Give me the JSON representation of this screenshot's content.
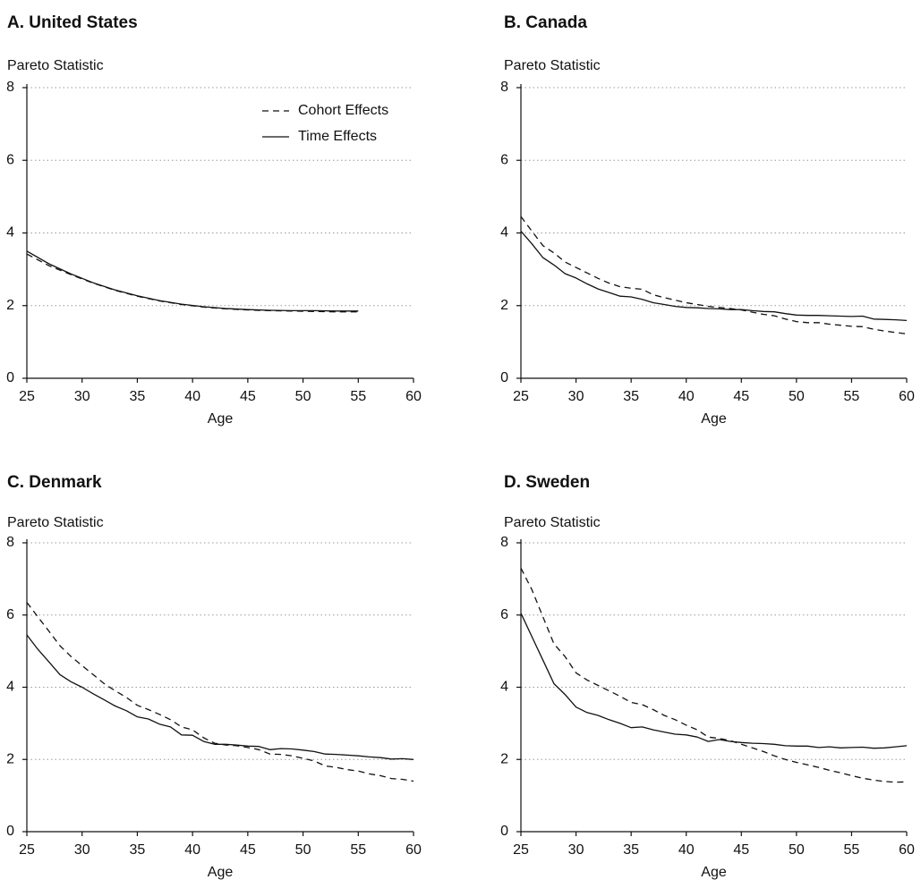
{
  "chart_data": [
    {
      "type": "line",
      "title": "A. United States",
      "ylabel": "Pareto Statistic",
      "xlabel": "Age",
      "xlim": [
        25,
        60
      ],
      "ylim": [
        0,
        8
      ],
      "xticks": [
        25,
        30,
        35,
        40,
        45,
        50,
        55,
        60
      ],
      "yticks": [
        0,
        2,
        4,
        6,
        8
      ],
      "grid": "horizontal dotted",
      "legend": "top-right",
      "series": [
        {
          "name": "Cohort Effects",
          "style": "dashed",
          "x": [
            25,
            27,
            29,
            31,
            33,
            35,
            37,
            39,
            41,
            43,
            45,
            47,
            49,
            51,
            53,
            55
          ],
          "y": [
            3.42,
            3.1,
            2.85,
            2.62,
            2.42,
            2.26,
            2.13,
            2.03,
            1.96,
            1.91,
            1.88,
            1.86,
            1.85,
            1.84,
            1.83,
            1.83
          ]
        },
        {
          "name": "Time Effects",
          "style": "solid",
          "x": [
            25,
            27,
            29,
            31,
            33,
            35,
            37,
            39,
            41,
            43,
            45,
            47,
            49,
            51,
            53,
            55
          ],
          "y": [
            3.5,
            3.15,
            2.87,
            2.63,
            2.43,
            2.27,
            2.14,
            2.04,
            1.97,
            1.92,
            1.89,
            1.87,
            1.86,
            1.86,
            1.85,
            1.85
          ]
        }
      ]
    },
    {
      "type": "line",
      "title": "B. Canada",
      "ylabel": "Pareto Statistic",
      "xlabel": "Age",
      "xlim": [
        25,
        60
      ],
      "ylim": [
        0,
        8
      ],
      "xticks": [
        25,
        30,
        35,
        40,
        45,
        50,
        55,
        60
      ],
      "yticks": [
        0,
        2,
        4,
        6,
        8
      ],
      "grid": "horizontal dotted",
      "series": [
        {
          "name": "Cohort Effects",
          "style": "dashed",
          "x": [
            25,
            26,
            27,
            28,
            29,
            30,
            31,
            32,
            33,
            34,
            35,
            36,
            37,
            38,
            39,
            40,
            41,
            42,
            43,
            44,
            45,
            46,
            47,
            48,
            49,
            50,
            51,
            52,
            53,
            54,
            55,
            56,
            57,
            58,
            59,
            60
          ],
          "y": [
            4.45,
            4.05,
            3.65,
            3.45,
            3.2,
            3.05,
            2.9,
            2.75,
            2.62,
            2.52,
            2.48,
            2.45,
            2.3,
            2.22,
            2.15,
            2.08,
            2.03,
            1.98,
            1.95,
            1.92,
            1.88,
            1.82,
            1.76,
            1.72,
            1.63,
            1.56,
            1.53,
            1.53,
            1.49,
            1.46,
            1.43,
            1.42,
            1.35,
            1.3,
            1.26,
            1.22
          ]
        },
        {
          "name": "Time Effects",
          "style": "solid",
          "x": [
            25,
            26,
            27,
            28,
            29,
            30,
            31,
            32,
            33,
            34,
            35,
            36,
            37,
            38,
            39,
            40,
            41,
            42,
            43,
            44,
            45,
            46,
            47,
            48,
            49,
            50,
            51,
            52,
            53,
            54,
            55,
            56,
            57,
            58,
            59,
            60
          ],
          "y": [
            4.05,
            3.7,
            3.32,
            3.12,
            2.88,
            2.76,
            2.6,
            2.46,
            2.36,
            2.26,
            2.24,
            2.17,
            2.08,
            2.03,
            1.98,
            1.95,
            1.94,
            1.92,
            1.91,
            1.89,
            1.89,
            1.86,
            1.84,
            1.83,
            1.78,
            1.74,
            1.73,
            1.73,
            1.72,
            1.71,
            1.7,
            1.71,
            1.63,
            1.62,
            1.61,
            1.59
          ]
        }
      ]
    },
    {
      "type": "line",
      "title": "C. Denmark",
      "ylabel": "Pareto Statistic",
      "xlabel": "Age",
      "xlim": [
        25,
        60
      ],
      "ylim": [
        0,
        8
      ],
      "xticks": [
        25,
        30,
        35,
        40,
        45,
        50,
        55,
        60
      ],
      "yticks": [
        0,
        2,
        4,
        6,
        8
      ],
      "grid": "horizontal dotted",
      "series": [
        {
          "name": "Cohort Effects",
          "style": "dashed",
          "x": [
            25,
            26,
            27,
            28,
            29,
            30,
            31,
            32,
            33,
            34,
            35,
            36,
            37,
            38,
            39,
            40,
            41,
            42,
            43,
            44,
            45,
            46,
            47,
            48,
            49,
            50,
            51,
            52,
            53,
            54,
            55,
            56,
            57,
            58,
            59,
            60
          ],
          "y": [
            6.35,
            5.95,
            5.55,
            5.15,
            4.85,
            4.6,
            4.35,
            4.1,
            3.9,
            3.72,
            3.5,
            3.38,
            3.25,
            3.1,
            2.9,
            2.82,
            2.6,
            2.45,
            2.4,
            2.38,
            2.33,
            2.27,
            2.15,
            2.14,
            2.1,
            2.03,
            1.96,
            1.82,
            1.78,
            1.72,
            1.68,
            1.6,
            1.55,
            1.47,
            1.45,
            1.4
          ]
        },
        {
          "name": "Time Effects",
          "style": "solid",
          "x": [
            25,
            26,
            27,
            28,
            29,
            30,
            31,
            32,
            33,
            34,
            35,
            36,
            37,
            38,
            39,
            40,
            41,
            42,
            43,
            44,
            45,
            46,
            47,
            48,
            49,
            50,
            51,
            52,
            53,
            54,
            55,
            56,
            57,
            58,
            59,
            60
          ],
          "y": [
            5.45,
            5.05,
            4.7,
            4.35,
            4.15,
            4.0,
            3.82,
            3.65,
            3.48,
            3.35,
            3.18,
            3.12,
            2.98,
            2.9,
            2.68,
            2.67,
            2.5,
            2.42,
            2.42,
            2.4,
            2.37,
            2.36,
            2.27,
            2.3,
            2.29,
            2.26,
            2.22,
            2.15,
            2.14,
            2.12,
            2.1,
            2.07,
            2.05,
            2.01,
            2.02,
            2.0
          ]
        }
      ]
    },
    {
      "type": "line",
      "title": "D. Sweden",
      "ylabel": "Pareto Statistic",
      "xlabel": "Age",
      "xlim": [
        25,
        60
      ],
      "ylim": [
        0,
        8
      ],
      "xticks": [
        25,
        30,
        35,
        40,
        45,
        50,
        55,
        60
      ],
      "yticks": [
        0,
        2,
        4,
        6,
        8
      ],
      "grid": "horizontal dotted",
      "series": [
        {
          "name": "Cohort Effects",
          "style": "dashed",
          "x": [
            25,
            26,
            27,
            28,
            29,
            30,
            31,
            32,
            33,
            34,
            35,
            36,
            37,
            38,
            39,
            40,
            41,
            42,
            43,
            44,
            45,
            46,
            47,
            48,
            49,
            50,
            51,
            52,
            53,
            54,
            55,
            56,
            57,
            58,
            59,
            60
          ],
          "y": [
            7.3,
            6.7,
            5.95,
            5.2,
            4.85,
            4.4,
            4.2,
            4.05,
            3.9,
            3.75,
            3.58,
            3.52,
            3.38,
            3.22,
            3.1,
            2.95,
            2.82,
            2.62,
            2.58,
            2.52,
            2.42,
            2.32,
            2.22,
            2.1,
            2.0,
            1.92,
            1.85,
            1.78,
            1.7,
            1.63,
            1.55,
            1.48,
            1.43,
            1.39,
            1.37,
            1.38
          ]
        },
        {
          "name": "Time Effects",
          "style": "solid",
          "x": [
            25,
            26,
            27,
            28,
            29,
            30,
            31,
            32,
            33,
            34,
            35,
            36,
            37,
            38,
            39,
            40,
            41,
            42,
            43,
            44,
            45,
            46,
            47,
            48,
            49,
            50,
            51,
            52,
            53,
            54,
            55,
            56,
            57,
            58,
            59,
            60
          ],
          "y": [
            6.05,
            5.4,
            4.75,
            4.1,
            3.8,
            3.45,
            3.3,
            3.22,
            3.1,
            3.0,
            2.88,
            2.9,
            2.82,
            2.76,
            2.7,
            2.68,
            2.62,
            2.5,
            2.55,
            2.5,
            2.47,
            2.45,
            2.44,
            2.42,
            2.38,
            2.37,
            2.37,
            2.33,
            2.35,
            2.32,
            2.33,
            2.34,
            2.31,
            2.32,
            2.35,
            2.38
          ]
        }
      ]
    }
  ]
}
